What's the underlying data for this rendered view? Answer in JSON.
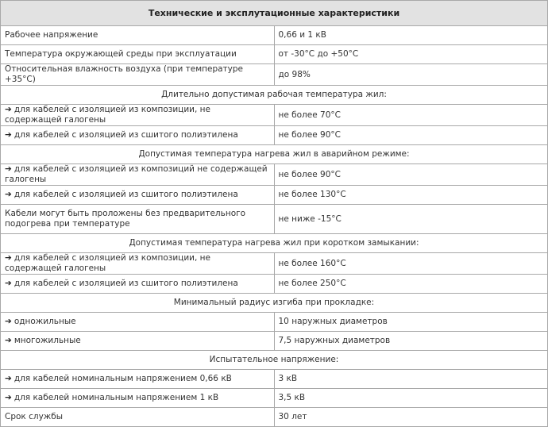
{
  "title": "Технические и эксплутационные характеристики",
  "rows": [
    {
      "type": "row",
      "label": "Рабочее напряжение",
      "value": "0,66 и 1 кВ"
    },
    {
      "type": "row",
      "label": "Температура окружающей среды при эксплуатации",
      "value": "от -30°С до +50°С"
    },
    {
      "type": "row",
      "label": "Относительная влажность воздуха (при температуре +35°С)",
      "value": "до 98%"
    },
    {
      "type": "section",
      "label": "Длительно допустимая рабочая температура жил:"
    },
    {
      "type": "arrow",
      "label": "для кабелей с изоляцией из композиции, не содержащей галогены",
      "value": "не более 70°С"
    },
    {
      "type": "arrow",
      "label": "для кабелей с изоляцией из сшитого полиэтилена",
      "value": "не более 90°С"
    },
    {
      "type": "section",
      "label": "Допустимая температура нагрева жил в аварийном режиме:"
    },
    {
      "type": "arrow",
      "label": "для кабелей с изоляцией из композиций не содержащей галогены",
      "value": "не более 90°С"
    },
    {
      "type": "arrow",
      "label": "для кабелей с изоляцией из сшитого полиэтилена",
      "value": "не более 130°С"
    },
    {
      "type": "tall",
      "label": "Кабели могут быть проложены без предварительного подогрева при температуре",
      "value": "не ниже -15°С"
    },
    {
      "type": "section",
      "label": "Допустимая температура нагрева жил при коротком замыкании:"
    },
    {
      "type": "arrow",
      "label": "для кабелей с изоляцией из композиции, не содержащей галогены",
      "value": "не более 160°С"
    },
    {
      "type": "arrow",
      "label": "для кабелей с изоляцией из сшитого полиэтилена",
      "value": "не более 250°С"
    },
    {
      "type": "section",
      "label": "Минимальный радиус изгиба при прокладке:"
    },
    {
      "type": "arrow",
      "label": "одножильные",
      "value": "10 наружных диаметров"
    },
    {
      "type": "arrow",
      "label": "многожильные",
      "value": "7,5 наружных диаметров"
    },
    {
      "type": "section",
      "label": "Испытательное напряжение:"
    },
    {
      "type": "arrow",
      "label": "для кабелей номинальным напряжением 0,66 кВ",
      "value": "3 кВ"
    },
    {
      "type": "arrow",
      "label": "для кабелей номинальным напряжением 1 кВ",
      "value": "3,5 кВ"
    },
    {
      "type": "row",
      "label": "Срок службы",
      "value": "30 лет"
    }
  ],
  "arrow_icon": "➔"
}
